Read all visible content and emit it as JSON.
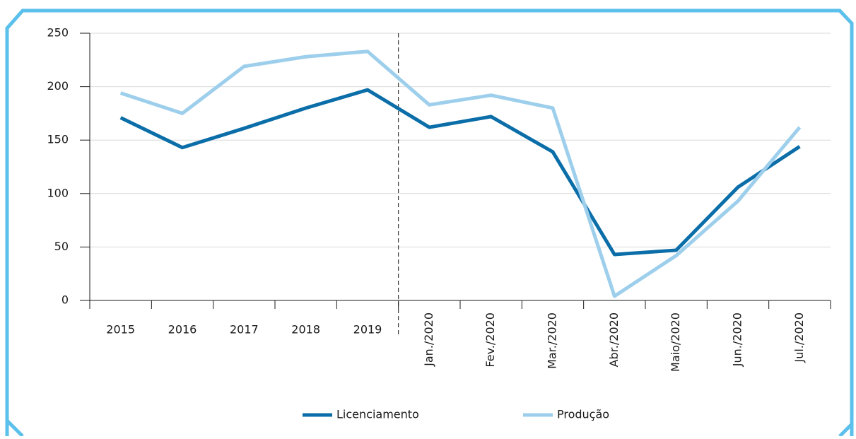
{
  "chart_data": {
    "type": "line",
    "categories": [
      "2015",
      "2016",
      "2017",
      "2018",
      "2019",
      "Jan./2020",
      "Fev./2020",
      "Mar./2020",
      "Abr./2020",
      "Maio/2020",
      "Jun./2020",
      "Jul./2020"
    ],
    "series": [
      {
        "name": "Licenciamento",
        "color": "#0b6ea8",
        "values": [
          171,
          143,
          161,
          180,
          197,
          162,
          172,
          139,
          43,
          47,
          106,
          144
        ]
      },
      {
        "name": "Produção",
        "color": "#9dcfec",
        "values": [
          194,
          175,
          219,
          228,
          233,
          183,
          192,
          180,
          4,
          42,
          93,
          162
        ]
      }
    ],
    "ylim": [
      0,
      250
    ],
    "yticks": [
      0,
      50,
      100,
      150,
      200,
      250
    ],
    "grid": true
  }
}
